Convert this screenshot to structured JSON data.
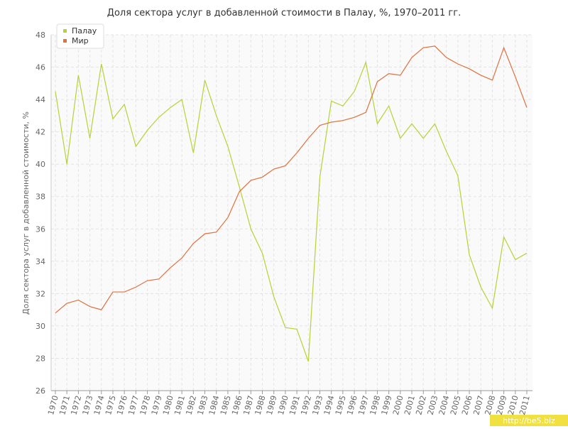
{
  "chart_data": {
    "type": "line",
    "title": "Доля сектора услуг в добавленной стоимости в Палау, %, 1970–2011 гг.",
    "y_label": "Доля сектора услуг в добавленной стоимости, %",
    "watermark": "http://be5.biz",
    "x": [
      1970,
      1971,
      1972,
      1973,
      1974,
      1975,
      1976,
      1977,
      1978,
      1979,
      1980,
      1981,
      1982,
      1983,
      1984,
      1985,
      1986,
      1987,
      1988,
      1989,
      1990,
      1991,
      1992,
      1993,
      1994,
      1995,
      1996,
      1997,
      1998,
      1999,
      2000,
      2001,
      2002,
      2003,
      2004,
      2005,
      2006,
      2007,
      2008,
      2009,
      2010,
      2011
    ],
    "series": [
      {
        "name": "Палау",
        "color": "#b5d334",
        "values": [
          44.5,
          40.0,
          45.5,
          41.6,
          46.2,
          42.8,
          43.7,
          41.1,
          42.1,
          42.9,
          43.5,
          44.0,
          40.7,
          45.2,
          43.0,
          41.1,
          38.6,
          36.0,
          34.5,
          31.8,
          29.9,
          29.8,
          27.8,
          39.2,
          43.9,
          43.6,
          44.5,
          46.3,
          42.5,
          43.6,
          41.6,
          42.5,
          41.6,
          42.5,
          40.8,
          39.3,
          34.4,
          32.4,
          31.1,
          35.5,
          34.1,
          34.5
        ]
      },
      {
        "name": "Мир",
        "color": "#e0703c",
        "values": [
          30.8,
          31.4,
          31.6,
          31.2,
          31.0,
          32.1,
          32.1,
          32.4,
          32.8,
          32.9,
          33.6,
          34.2,
          35.1,
          35.7,
          35.8,
          36.7,
          38.3,
          39.0,
          39.2,
          39.7,
          39.9,
          40.7,
          41.6,
          42.4,
          42.6,
          42.7,
          42.9,
          43.2,
          45.1,
          45.6,
          45.5,
          46.6,
          47.2,
          47.3,
          46.6,
          46.2,
          45.9,
          45.5,
          45.2,
          47.2,
          45.4,
          43.5
        ]
      }
    ],
    "xlim": [
      1970,
      2011
    ],
    "ylim": [
      26,
      48
    ],
    "yticks": [
      26,
      28,
      30,
      32,
      34,
      36,
      38,
      40,
      42,
      44,
      46,
      48
    ],
    "grid": true,
    "legend": "top-left"
  }
}
